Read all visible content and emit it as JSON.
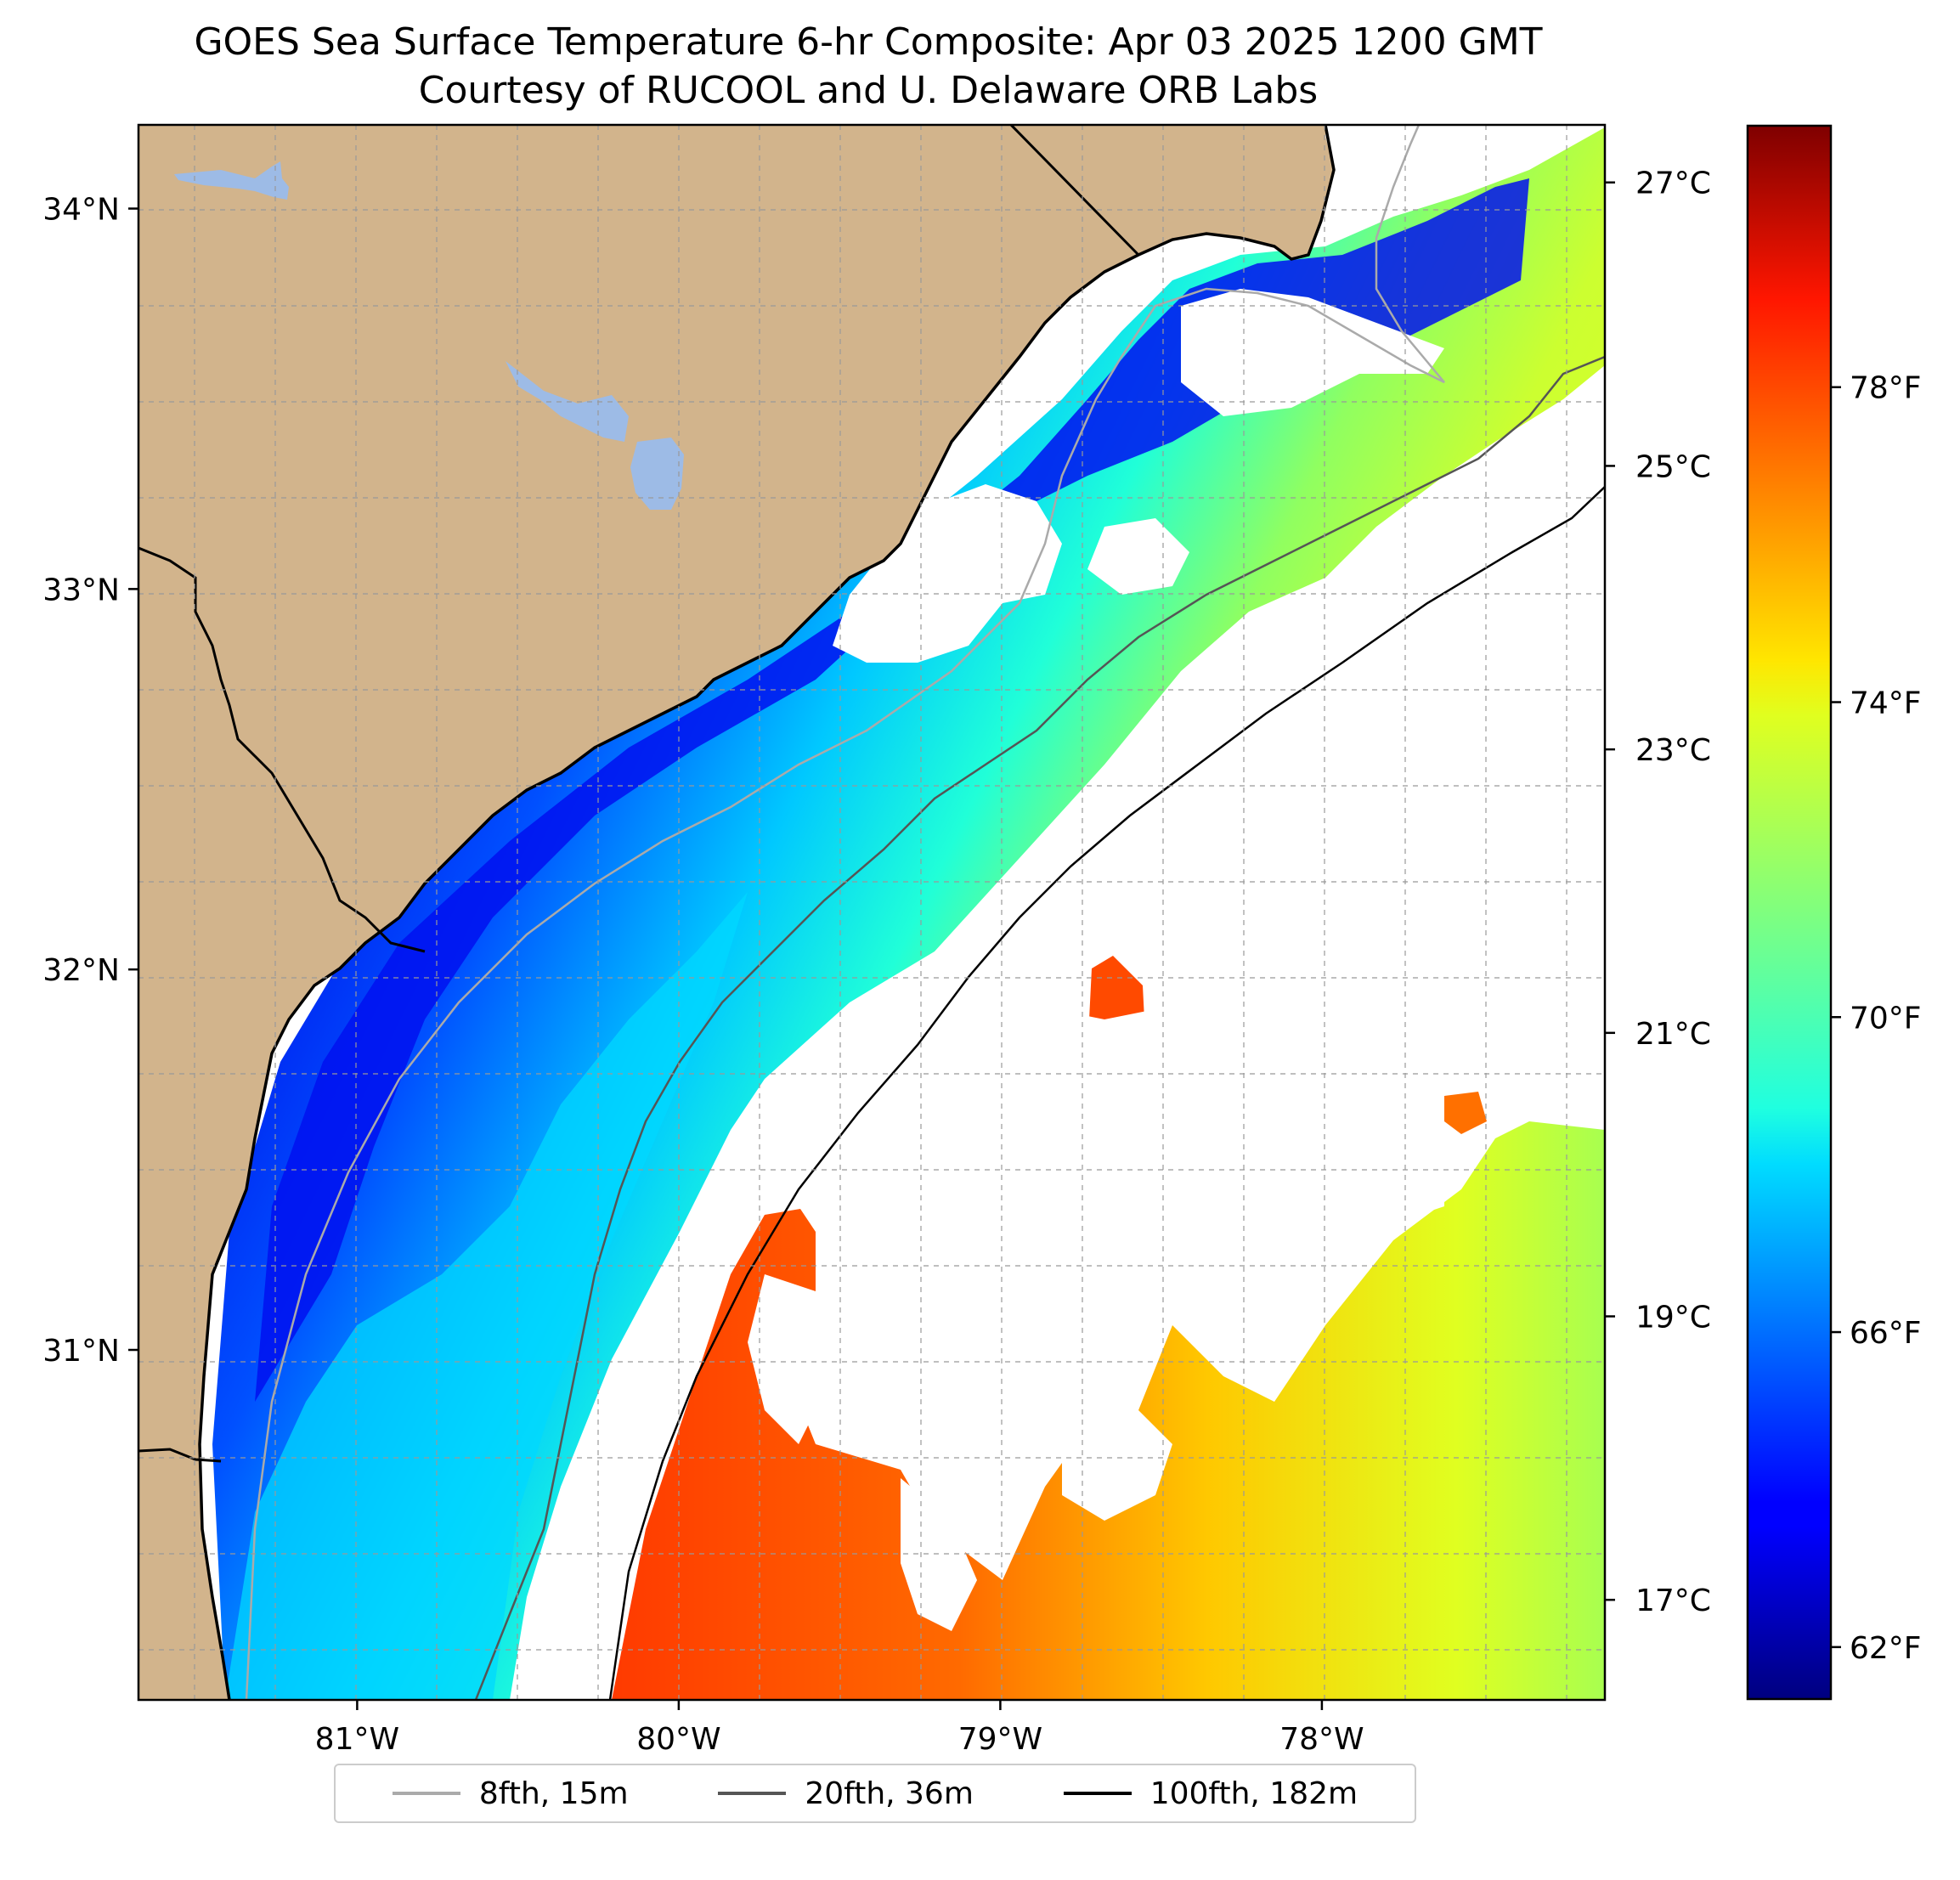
{
  "title_line1": "GOES Sea Surface Temperature 6-hr Composite: Apr 03 2025 1200 GMT",
  "title_line2": "Courtesy of RUCOOL and U. Delaware ORB Labs",
  "map": {
    "lon_range": [
      -81.68,
      -77.12
    ],
    "lat_range": [
      30.08,
      34.22
    ],
    "lat_ticks": [
      {
        "value": 34,
        "label": "34°N"
      },
      {
        "value": 33,
        "label": "33°N"
      },
      {
        "value": 32,
        "label": "32°N"
      },
      {
        "value": 31,
        "label": "31°N"
      }
    ],
    "lon_ticks": [
      {
        "value": -81,
        "label": "81°W"
      },
      {
        "value": -80,
        "label": "80°W"
      },
      {
        "value": -79,
        "label": "79°W"
      },
      {
        "value": -78,
        "label": "78°W"
      }
    ],
    "grid": true,
    "colors": {
      "land": "#d2b48c",
      "lakes": "#9dbbe6",
      "ocean_no_data": "#ffffff",
      "coastline": "#000000",
      "grid": "#999999"
    }
  },
  "colorbar": {
    "colormap": "jet",
    "celsius_range": [
      16.3,
      27.4
    ],
    "celsius_ticks": [
      {
        "value": 17,
        "label": "17°C"
      },
      {
        "value": 19,
        "label": "19°C"
      },
      {
        "value": 21,
        "label": "21°C"
      },
      {
        "value": 23,
        "label": "23°C"
      },
      {
        "value": 25,
        "label": "25°C"
      },
      {
        "value": 27,
        "label": "27°C"
      }
    ],
    "fahrenheit_ticks": [
      {
        "value": 62,
        "label": "62°F"
      },
      {
        "value": 66,
        "label": "66°F"
      },
      {
        "value": 70,
        "label": "70°F"
      },
      {
        "value": 74,
        "label": "74°F"
      },
      {
        "value": 78,
        "label": "78°F"
      }
    ]
  },
  "legend": {
    "items": [
      {
        "label": "8fth, 15m",
        "color": "#aaaaaa"
      },
      {
        "label": "20fth, 36m",
        "color": "#555555"
      },
      {
        "label": "100fth, 182m",
        "color": "#000000"
      }
    ]
  }
}
